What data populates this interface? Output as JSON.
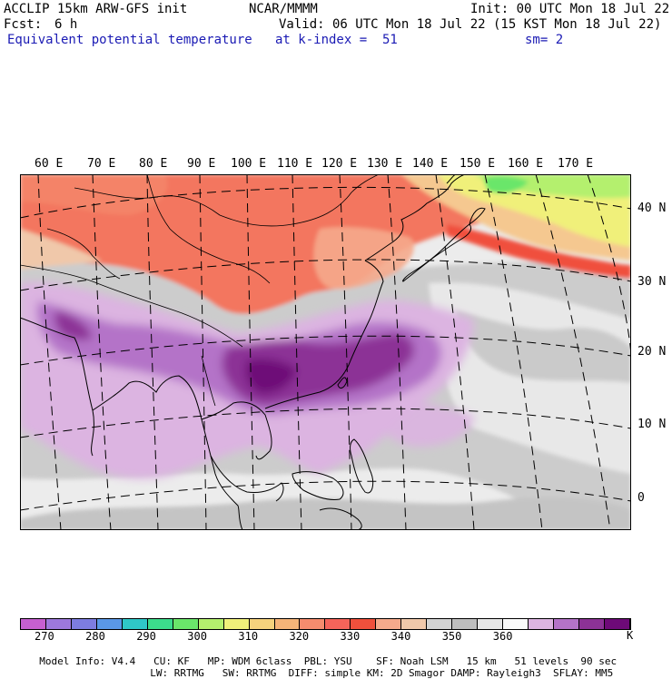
{
  "header": {
    "model_title": "ACCLIP 15km ARW-GFS init",
    "org": "NCAR/MMMM",
    "init": "Init: 00 UTC Mon 18 Jul 22",
    "fcst_label": "Fcst:",
    "fcst_value": "6 h",
    "valid": "Valid: 06 UTC Mon 18 Jul 22 (15 KST Mon 18 Jul 22)",
    "field": "Equivalent potential temperature",
    "level": "at k-index =  51",
    "smooth": "sm= 2"
  },
  "map": {
    "lon_labels": [
      "60 E",
      "70 E",
      "80 E",
      "90 E",
      "100 E",
      "110 E",
      "120 E",
      "130 E",
      "140 E",
      "150 E",
      "160 E",
      "170 E"
    ],
    "lat_labels": [
      "40 N",
      "30 N",
      "20 N",
      "10 N",
      "0"
    ]
  },
  "colorbar": {
    "unit": "K",
    "ticks": [
      "270",
      "280",
      "290",
      "300",
      "310",
      "320",
      "330",
      "340",
      "350",
      "360"
    ],
    "colors": [
      "#c65fd1",
      "#9d78dc",
      "#7d7de0",
      "#5a98e6",
      "#2fc8c8",
      "#3cdc8c",
      "#6ae66a",
      "#b4f06e",
      "#f0f07a",
      "#f5d27d",
      "#f5b478",
      "#f58c6e",
      "#f5645a",
      "#f0503c",
      "#f5aa8c",
      "#f0c8aa",
      "#d2d2d2",
      "#bebebe",
      "#e6e6e6",
      "#fafafa",
      "#dcb4e1",
      "#b473c8",
      "#8c3296",
      "#6e0a78"
    ]
  },
  "footer": {
    "line1": [
      "Model Info: V4.4",
      "CU: KF",
      "MP: WDM 6class",
      "PBL: YSU",
      "SF: Noah LSM",
      "15 km",
      "51 levels",
      "90 sec"
    ],
    "line2": [
      "LW: RRTMG",
      "SW: RRTMG",
      "DIFF: simple",
      "KM: 2D Smagor",
      "DAMP: Rayleigh3",
      "SFLAY: MM5"
    ]
  }
}
